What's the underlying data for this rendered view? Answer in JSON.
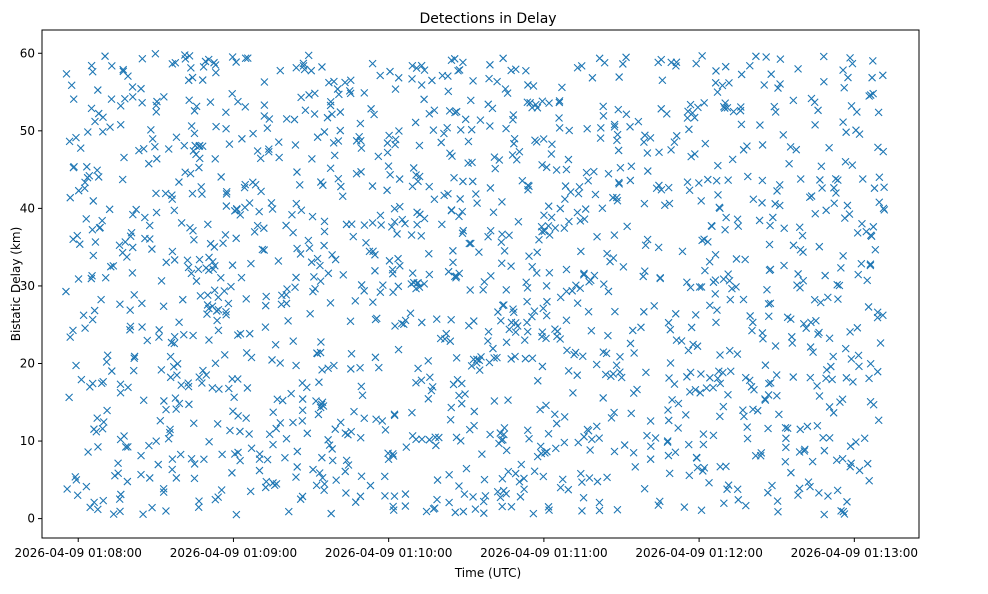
{
  "chart_data": {
    "type": "scatter",
    "title": "Detections in Delay",
    "xlabel": "Time (UTC)",
    "ylabel": "Bistatic Delay (km)",
    "xlim_seconds": [
      -14,
      325
    ],
    "ylim": [
      -2.5,
      63
    ],
    "x_tick_seconds": [
      0,
      60,
      120,
      180,
      240,
      300
    ],
    "x_tick_labels": [
      "2026-04-09 01:08:00",
      "2026-04-09 01:09:00",
      "2026-04-09 01:10:00",
      "2026-04-09 01:11:00",
      "2026-04-09 01:12:00",
      "2026-04-09 01:13:00"
    ],
    "y_ticks": [
      0,
      10,
      20,
      30,
      40,
      50,
      60
    ],
    "y_tick_labels": [
      "0",
      "10",
      "20",
      "30",
      "40",
      "50",
      "60"
    ],
    "marker": "x",
    "series": [
      {
        "name": "detections",
        "color": "#1f77b4",
        "x_start_seconds": -5,
        "x_end_seconds": 312,
        "delay_range_km": [
          0.5,
          60
        ],
        "count": 1500,
        "distribution": "approximately uniform random over time and delay",
        "points": []
      }
    ]
  }
}
